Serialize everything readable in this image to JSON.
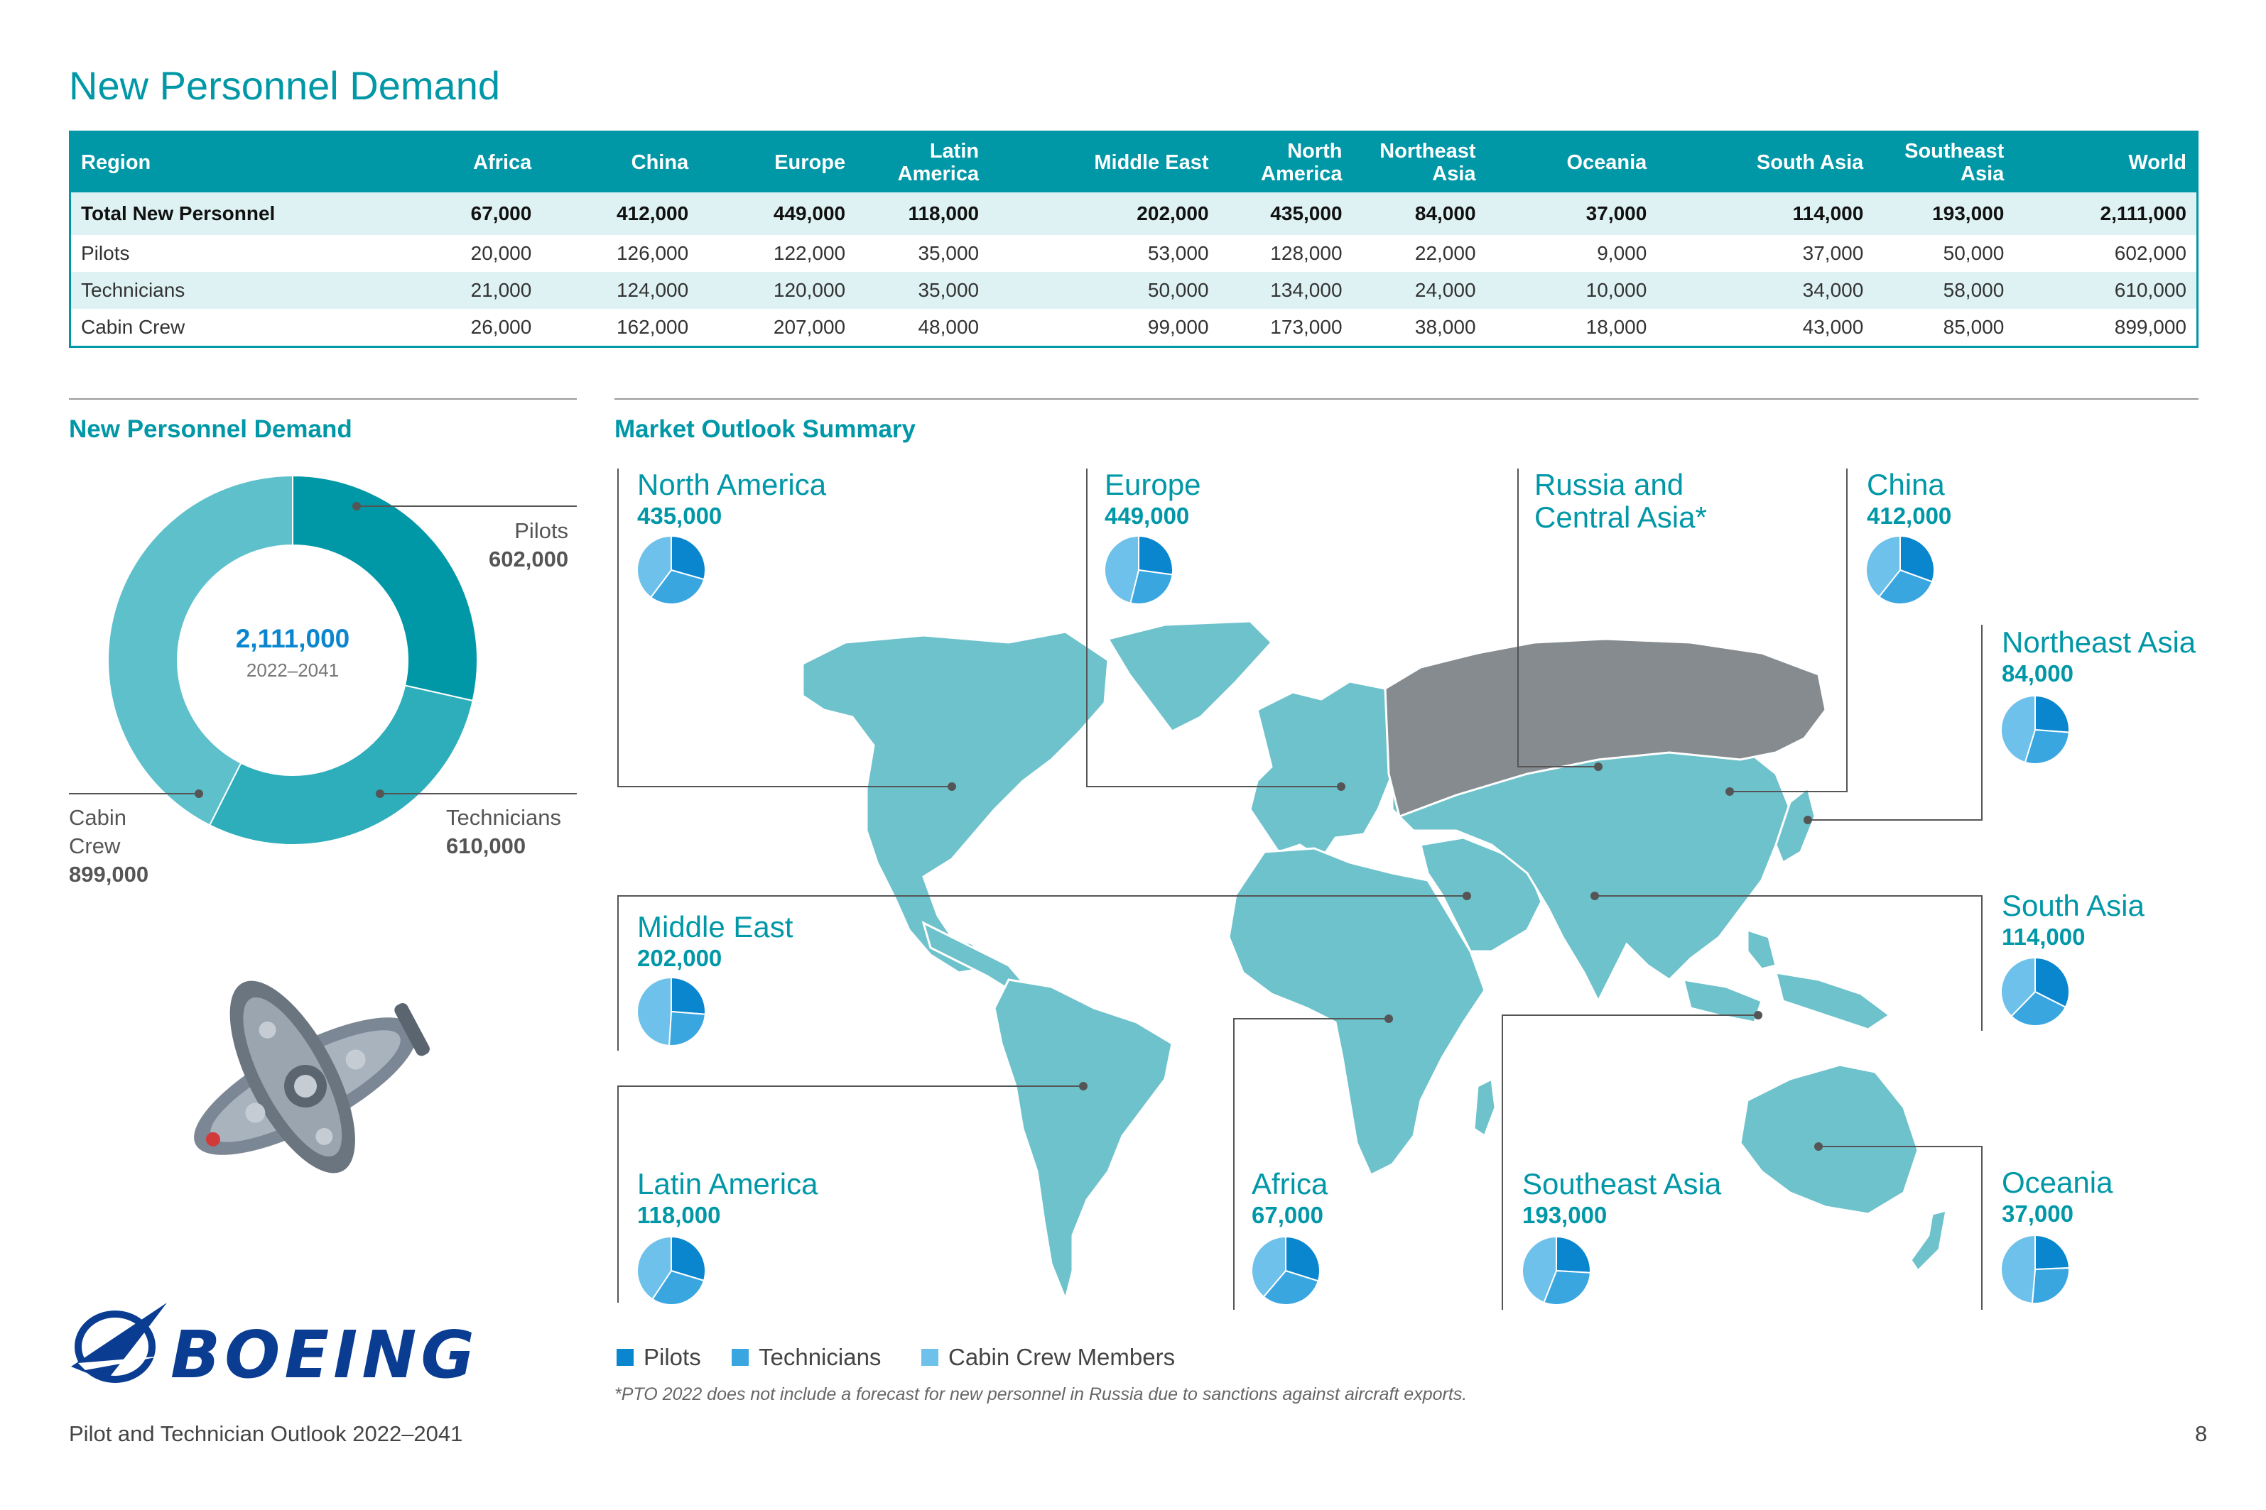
{
  "page": {
    "title": "New Personnel Demand",
    "footer": "Pilot and Technician Outlook 2022–2041",
    "page_number": "8",
    "footnote": "*PTO 2022 does not include a forecast for new personnel in Russia due to sanctions against aircraft exports.",
    "brand": "BOEING"
  },
  "table": {
    "headers": [
      "Region",
      "Africa",
      "China",
      "Europe",
      "Latin America",
      "Middle East",
      "North America",
      "Northeast Asia",
      "Oceania",
      "South Asia",
      "Southeast Asia",
      "World"
    ],
    "rows": [
      {
        "label": "Total New Personnel",
        "values": [
          "67,000",
          "412,000",
          "449,000",
          "118,000",
          "202,000",
          "435,000",
          "84,000",
          "37,000",
          "114,000",
          "193,000",
          "2,111,000"
        ]
      },
      {
        "label": "Pilots",
        "values": [
          "20,000",
          "126,000",
          "122,000",
          "35,000",
          "53,000",
          "128,000",
          "22,000",
          "9,000",
          "37,000",
          "50,000",
          "602,000"
        ]
      },
      {
        "label": "Technicians",
        "values": [
          "21,000",
          "124,000",
          "120,000",
          "35,000",
          "50,000",
          "134,000",
          "24,000",
          "10,000",
          "34,000",
          "58,000",
          "610,000"
        ]
      },
      {
        "label": "Cabin Crew",
        "values": [
          "26,000",
          "162,000",
          "207,000",
          "48,000",
          "99,000",
          "173,000",
          "38,000",
          "18,000",
          "43,000",
          "85,000",
          "899,000"
        ]
      }
    ]
  },
  "donut": {
    "heading": "New Personnel Demand",
    "total": "2,111,000",
    "period": "2022–2041",
    "segments": [
      {
        "name": "Pilots",
        "value": 602000,
        "label": "602,000",
        "color": "#0097a7"
      },
      {
        "name": "Technicians",
        "value": 610000,
        "label": "610,000",
        "color": "#2eadbb"
      },
      {
        "name": "Cabin Crew",
        "value": 899000,
        "label": "899,000",
        "color": "#5ec0cb"
      }
    ]
  },
  "market": {
    "heading": "Market Outlook Summary",
    "regions": [
      {
        "name": "North America",
        "value": "435,000",
        "mix": [
          128000,
          134000,
          173000
        ]
      },
      {
        "name": "Europe",
        "value": "449,000",
        "mix": [
          122000,
          120000,
          207000
        ]
      },
      {
        "name": "Russia and Central Asia*",
        "value": ""
      },
      {
        "name": "China",
        "value": "412,000",
        "mix": [
          126000,
          124000,
          162000
        ]
      },
      {
        "name": "Northeast Asia",
        "value": "84,000",
        "mix": [
          22000,
          24000,
          38000
        ]
      },
      {
        "name": "Middle East",
        "value": "202,000",
        "mix": [
          53000,
          50000,
          99000
        ]
      },
      {
        "name": "South Asia",
        "value": "114,000",
        "mix": [
          37000,
          34000,
          43000
        ]
      },
      {
        "name": "Latin America",
        "value": "118,000",
        "mix": [
          35000,
          35000,
          48000
        ]
      },
      {
        "name": "Africa",
        "value": "67,000",
        "mix": [
          20000,
          21000,
          26000
        ]
      },
      {
        "name": "Southeast Asia",
        "value": "193,000",
        "mix": [
          50000,
          58000,
          85000
        ]
      },
      {
        "name": "Oceania",
        "value": "37,000",
        "mix": [
          9000,
          10000,
          18000
        ]
      }
    ],
    "legend": [
      {
        "label": "Pilots",
        "color": "#0a86cf"
      },
      {
        "label": "Technicians",
        "color": "#3aa6e0"
      },
      {
        "label": "Cabin Crew Members",
        "color": "#6ec1ea"
      }
    ]
  }
}
